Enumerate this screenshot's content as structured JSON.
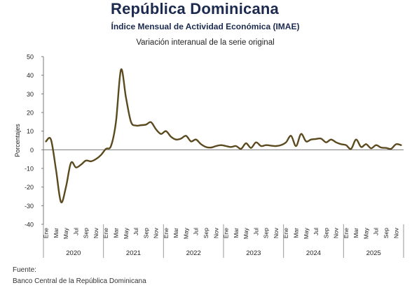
{
  "chart_data": {
    "type": "line",
    "title": "República Dominicana",
    "subtitle": "Índice Mensual de Actividad Económica (IMAE)",
    "series_note": "Variación interanual de la serie original",
    "ylabel": "Porcentajes",
    "xlabel": "",
    "ylim": [
      -40,
      50
    ],
    "yticks": [
      "50",
      "40",
      "30",
      "20",
      "10",
      "0",
      "-10",
      "-20",
      "-30",
      "-40"
    ],
    "month_tick_labels": [
      "Ene",
      "Mar",
      "May",
      "Jul",
      "Sep",
      "Nov"
    ],
    "years": [
      "2020",
      "2021",
      "2022",
      "2023",
      "2024",
      "2025"
    ],
    "grid": false,
    "legend": "none",
    "line_color": "#5c4a1f",
    "series": [
      {
        "values": [
          4.5,
          5.5,
          -10.5,
          -28,
          -20,
          -7,
          -9.5,
          -8,
          -5.8,
          -6.2,
          -5,
          -2.8,
          0.5,
          2,
          15,
          43,
          28,
          15,
          13,
          13.2,
          13.5,
          14.8,
          11,
          8.5,
          10,
          7,
          5.5,
          6,
          7.5,
          4.5,
          5.5,
          3,
          1.5,
          1.2,
          2,
          2.5,
          2,
          1.5,
          2,
          0.5,
          3.5,
          1,
          4,
          2,
          2.5,
          2.2,
          2,
          2.5,
          4,
          7.5,
          2,
          8.5,
          4.5,
          5.5,
          5.8,
          6,
          4,
          5.5,
          4,
          3,
          2.5,
          0.5,
          5.5,
          1.5,
          3,
          0.8,
          2.5,
          1.2,
          1,
          0.5,
          3,
          2.5
        ]
      }
    ]
  },
  "footer": {
    "source_label": "Fuente:",
    "source_text": "Banco Central de la República Dominicana"
  }
}
